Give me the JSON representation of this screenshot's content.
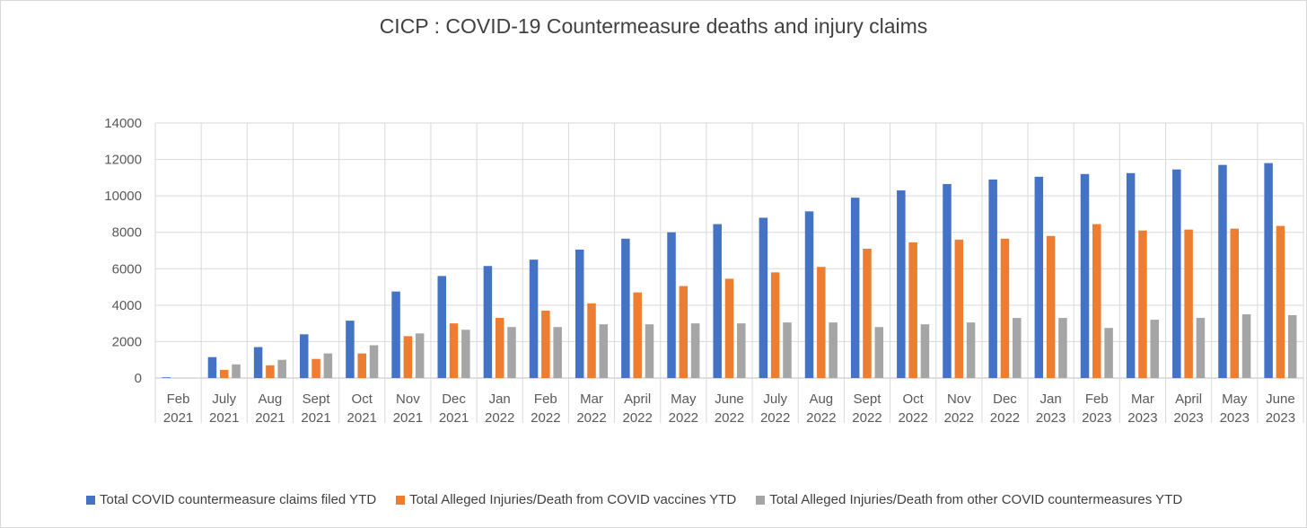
{
  "chart_data": {
    "type": "bar",
    "title": "CICP : COVID-19 Countermeasure deaths and injury claims",
    "xlabel": "",
    "ylabel": "",
    "ylim": [
      0,
      14000
    ],
    "yticks": [
      0,
      2000,
      4000,
      6000,
      8000,
      10000,
      12000,
      14000
    ],
    "grid": true,
    "legend_position": "bottom",
    "categories": [
      [
        "Feb",
        "2021"
      ],
      [
        "July",
        "2021"
      ],
      [
        "Aug",
        "2021"
      ],
      [
        "Sept",
        "2021"
      ],
      [
        "Oct",
        "2021"
      ],
      [
        "Nov",
        "2021"
      ],
      [
        "Dec",
        "2021"
      ],
      [
        "Jan",
        "2022"
      ],
      [
        "Feb",
        "2022"
      ],
      [
        "Mar",
        "2022"
      ],
      [
        "April",
        "2022"
      ],
      [
        "May",
        "2022"
      ],
      [
        "June",
        "2022"
      ],
      [
        "July",
        "2022"
      ],
      [
        "Aug",
        "2022"
      ],
      [
        "Sept",
        "2022"
      ],
      [
        "Oct",
        "2022"
      ],
      [
        "Nov",
        "2022"
      ],
      [
        "Dec",
        "2022"
      ],
      [
        "Jan",
        "2023"
      ],
      [
        "Feb",
        "2023"
      ],
      [
        "Mar",
        "2023"
      ],
      [
        "April",
        "2023"
      ],
      [
        "May",
        "2023"
      ],
      [
        "June",
        "2023"
      ]
    ],
    "series": [
      {
        "name": "Total COVID countermeasure claims filed YTD",
        "color": "#4472c4",
        "values": [
          40,
          1150,
          1700,
          2400,
          3150,
          4750,
          5600,
          6150,
          6500,
          7050,
          7650,
          8000,
          8450,
          8800,
          9150,
          9900,
          10300,
          10650,
          10900,
          11050,
          11200,
          11250,
          11450,
          11700,
          11800
        ]
      },
      {
        "name": "Total Alleged Injuries/Death from COVID vaccines YTD",
        "color": "#ed7d31",
        "values": [
          0,
          450,
          700,
          1050,
          1350,
          2300,
          3000,
          3300,
          3700,
          4100,
          4700,
          5050,
          5450,
          5800,
          6100,
          7100,
          7450,
          7600,
          7650,
          7800,
          8450,
          8100,
          8150,
          8200,
          8350
        ]
      },
      {
        "name": "Total Alleged Injuries/Death from other COVID countermeasures YTD",
        "color": "#a5a5a5",
        "values": [
          0,
          750,
          1000,
          1350,
          1800,
          2450,
          2650,
          2800,
          2800,
          2950,
          2950,
          3000,
          3000,
          3050,
          3050,
          2800,
          2950,
          3050,
          3300,
          3300,
          2750,
          3200,
          3300,
          3500,
          3450
        ]
      }
    ]
  }
}
